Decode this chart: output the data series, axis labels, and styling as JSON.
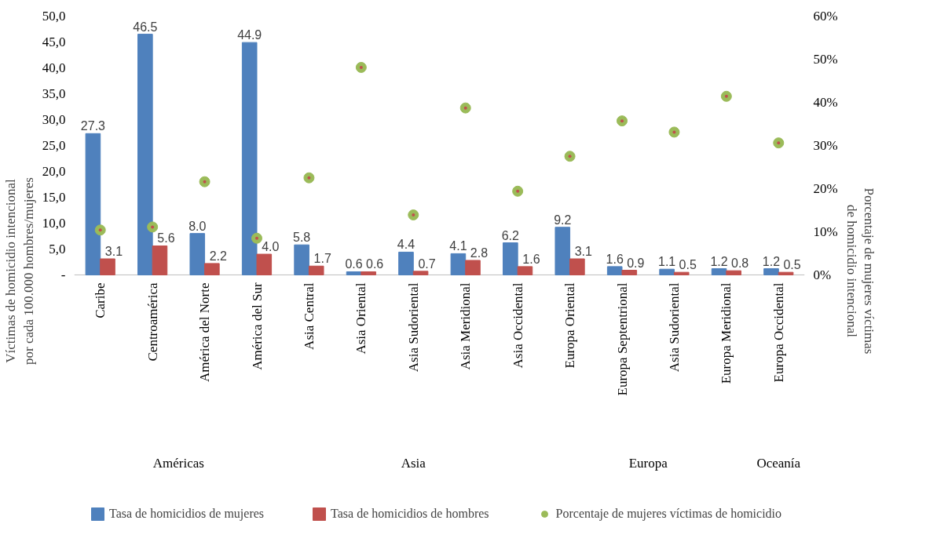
{
  "chart_data": {
    "type": "bar",
    "categories": [
      "Caribe",
      "Centroamérica",
      "América del Norte",
      "América del Sur",
      "Asia Central",
      "Asia Oriental",
      "Asia Sudoriental",
      "Asia Meridional",
      "Asia Occidental",
      "Europa Oriental",
      "Europa Septentrional",
      "Asia Sudoriental",
      "Europa Meridional",
      "Europa Occidental"
    ],
    "ylabel": "Víctimas de homicidio intencional por cada 100.000 hombres/mujeres",
    "y2label": "Porcentaje de mujeres víctimas de homicidio intencional",
    "ylim": [
      0,
      50
    ],
    "yticks": [
      {
        "value": 0,
        "label": "-"
      },
      {
        "value": 5,
        "label": "5,0"
      },
      {
        "value": 10,
        "label": "10,0"
      },
      {
        "value": 15,
        "label": "15,0"
      },
      {
        "value": 20,
        "label": "20,0"
      },
      {
        "value": 25,
        "label": "25,0"
      },
      {
        "value": 30,
        "label": "30,0"
      },
      {
        "value": 35,
        "label": "35,0"
      },
      {
        "value": 40,
        "label": "40,0"
      },
      {
        "value": 45,
        "label": "45,0"
      },
      {
        "value": 50,
        "label": "50,0"
      }
    ],
    "y2lim": [
      0,
      60
    ],
    "y2ticks": [
      {
        "value": 0,
        "label": "0%"
      },
      {
        "value": 10,
        "label": "10%"
      },
      {
        "value": 20,
        "label": "20%"
      },
      {
        "value": 30,
        "label": "30%"
      },
      {
        "value": 40,
        "label": "40%"
      },
      {
        "value": 50,
        "label": "50%"
      },
      {
        "value": 60,
        "label": "60%"
      }
    ],
    "series": [
      {
        "name": "Tasa de homicidios de mujeres",
        "color": "#4f81bd",
        "values": [
          27.3,
          46.5,
          8.0,
          44.9,
          5.8,
          0.6,
          4.4,
          4.1,
          6.2,
          9.2,
          1.6,
          1.1,
          1.2,
          1.2
        ],
        "value_labels": [
          "27.3",
          "46.5",
          "8.0",
          "44.9",
          "5.8",
          "0.6",
          "4.4",
          "4.1",
          "6.2",
          "9.2",
          "1.6",
          "1.1",
          "1.2",
          "1.2"
        ]
      },
      {
        "name": "Tasa de homicidios de hombres",
        "color": "#c0504d",
        "values": [
          3.1,
          5.6,
          2.2,
          4.0,
          1.7,
          0.6,
          0.7,
          2.8,
          1.6,
          3.1,
          0.9,
          0.5,
          0.8,
          0.5
        ],
        "value_labels": [
          "3.1",
          "5.6",
          "2.2",
          "4.0",
          "1.7",
          "0.6",
          "0.7",
          "2.8",
          "1.6",
          "3.1",
          "0.9",
          "0.5",
          "0.8",
          "0.5"
        ]
      },
      {
        "name": "Porcentaje de mujeres víctimas de homicidio",
        "type": "scatter",
        "axis": "y2",
        "color": "#9bbb59",
        "values": [
          10.4,
          11.1,
          21.6,
          8.5,
          22.5,
          48.1,
          13.9,
          38.7,
          19.4,
          27.5,
          35.7,
          33.1,
          41.4,
          30.6
        ]
      }
    ],
    "annotations": [
      "Américas",
      "Asia",
      "Europa",
      "Oceanía"
    ],
    "marker": "circle",
    "grid": false,
    "legend": "bottom"
  }
}
